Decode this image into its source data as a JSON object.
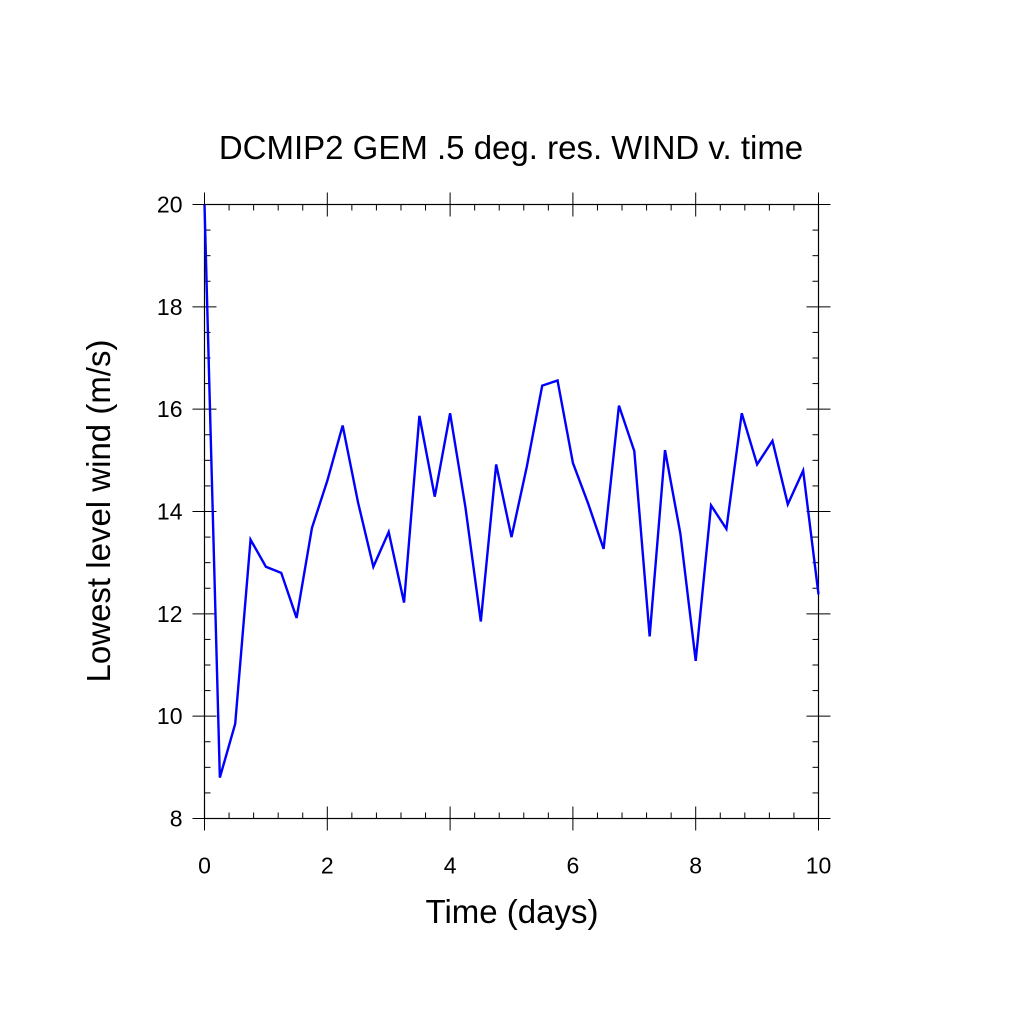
{
  "chart_data": {
    "type": "line",
    "title": "DCMIP2 GEM .5 deg. res. WIND v. time",
    "xlabel": "Time (days)",
    "ylabel": "Lowest level wind (m/s)",
    "xlim": [
      0,
      10
    ],
    "ylim": [
      8,
      20
    ],
    "x_ticks": [
      "0",
      "2",
      "4",
      "6",
      "8",
      "10"
    ],
    "y_ticks": [
      "8",
      "10",
      "12",
      "14",
      "16",
      "18",
      "20"
    ],
    "x_tick_values": [
      0,
      2,
      4,
      6,
      8,
      10
    ],
    "y_tick_values": [
      8,
      10,
      12,
      14,
      16,
      18,
      20
    ],
    "x_minor_step": 0.4,
    "y_minor_step": 0.5,
    "grid": false,
    "series": [
      {
        "color": "#0000ff",
        "x": [
          0,
          0.25,
          0.5,
          0.75,
          1.0,
          1.25,
          1.5,
          1.75,
          2.0,
          2.25,
          2.5,
          2.75,
          3.0,
          3.25,
          3.5,
          3.75,
          4.0,
          4.25,
          4.5,
          4.75,
          5.0,
          5.25,
          5.5,
          5.75,
          6.0,
          6.25,
          6.5,
          6.75,
          7.0,
          7.25,
          7.5,
          7.75,
          8.0,
          8.25,
          8.5,
          8.75,
          9.0,
          9.25,
          9.5,
          9.75,
          10.0
        ],
        "y": [
          20.0,
          8.8,
          9.85,
          13.45,
          12.92,
          12.8,
          11.92,
          13.68,
          14.6,
          15.68,
          14.18,
          12.92,
          13.6,
          12.22,
          15.87,
          14.29,
          15.92,
          14.08,
          11.85,
          14.92,
          13.5,
          14.88,
          16.46,
          16.56,
          14.95,
          14.15,
          13.27,
          16.07,
          15.18,
          11.56,
          15.2,
          13.57,
          11.08,
          14.12,
          13.66,
          15.92,
          14.92,
          15.38,
          14.14,
          14.8,
          12.38
        ]
      }
    ]
  }
}
